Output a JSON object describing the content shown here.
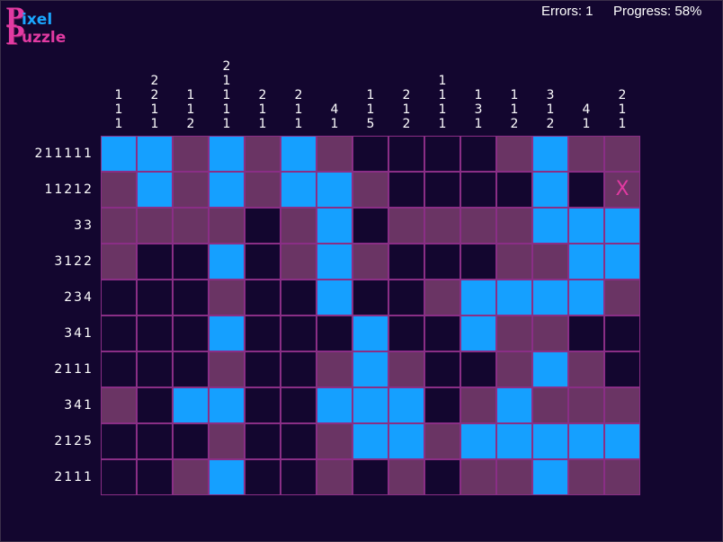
{
  "logo": {
    "line1_big": "P",
    "line1_small": "ixel",
    "line2_big": "P",
    "line2_small": "uzzle"
  },
  "hud": {
    "errors": "Errors: 1",
    "progress": "Progress: 58%"
  },
  "colors": {
    "background": "#13062f",
    "filled": "#15a0ff",
    "crossed": "#6a3464",
    "grid_line": "#8a2e86",
    "x_mark": "#e23aa2"
  },
  "col_clues": [
    [
      "1",
      "1",
      "1"
    ],
    [
      "2",
      "2",
      "1",
      "1"
    ],
    [
      "1",
      "1",
      "2"
    ],
    [
      "2",
      "1",
      "1",
      "1",
      "1"
    ],
    [
      "2",
      "1",
      "1"
    ],
    [
      "2",
      "1",
      "1"
    ],
    [
      "4",
      "1"
    ],
    [
      "1",
      "1",
      "5"
    ],
    [
      "2",
      "1",
      "2"
    ],
    [
      "1",
      "1",
      "1",
      "1"
    ],
    [
      "1",
      "3",
      "1"
    ],
    [
      "1",
      "1",
      "2"
    ],
    [
      "3",
      "1",
      "2"
    ],
    [
      "4",
      "1"
    ],
    [
      "2",
      "1",
      "1"
    ]
  ],
  "row_clues": [
    "211111",
    "11212",
    "33",
    "3122",
    "234",
    "341",
    "2111",
    "341",
    "2125",
    "2111"
  ],
  "cell_legend": {
    "F": "filled",
    "C": "crossed",
    "E": "empty",
    "X": "error-mark"
  },
  "grid": [
    "FFCFCFCEEEECFCC",
    "CFCFCFFCEEEEFEX",
    "CCCCECFECCCCFFF",
    "CEEFECFCEEECCFF",
    "EEECEEFEECFFFFC",
    "EEEFEEEFEEFCCEE",
    "EEECEECFCEECFCE",
    "CEFFEEFFFECFCCC",
    "EEECEECFFCFFFFF",
    "EECFEECECECCFCC"
  ],
  "error_mark": "X"
}
